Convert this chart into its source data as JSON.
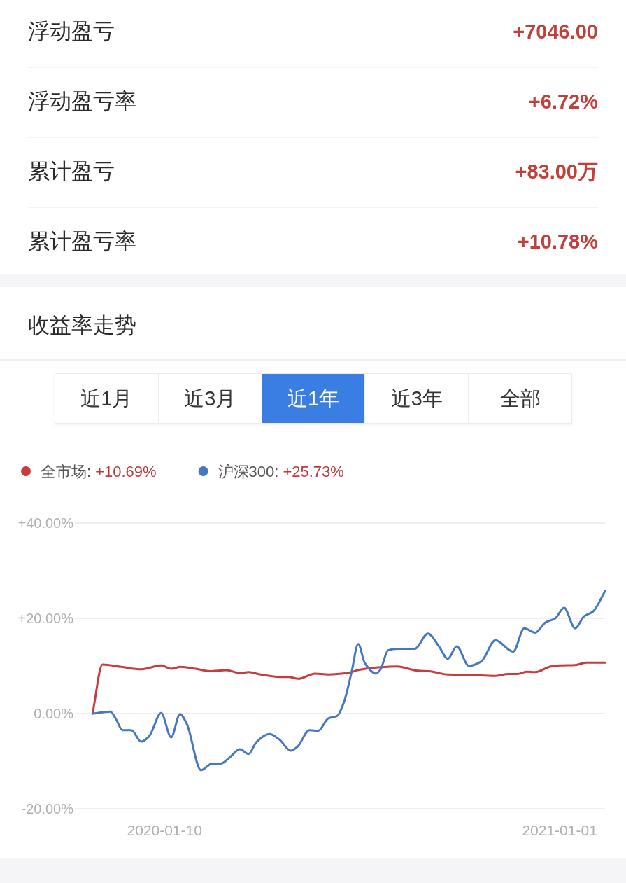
{
  "chart_data": [
    {
      "type": "other",
      "annotations": [
        "浮动盈亏",
        "+7046.00",
        "浮动盈亏率",
        "+6.72%",
        "累计盈亏",
        "+83.00万",
        "累计盈亏率",
        "+10.78%"
      ]
    },
    {
      "type": "line",
      "title": "收益率走势",
      "annotations": [
        "近1月",
        "近3月",
        "近1年",
        "近3年",
        "全部",
        "+10.69%",
        "+25.73%"
      ],
      "legend": "top left",
      "grid": "y",
      "line_style": "solid",
      "xlim": [
        "2019-10-21",
        "2021-02-11"
      ],
      "xticks": [
        "2020-01-10",
        "2021-01-01"
      ],
      "ylim": [
        -20,
        40
      ],
      "yticks": [
        {
          "value": 40,
          "label": "+40.00%"
        },
        {
          "value": 20,
          "label": "+20.00%"
        },
        {
          "value": 0,
          "label": "0.00%"
        },
        {
          "value": -20,
          "label": "-20.00%"
        }
      ],
      "series": [
        {
          "name": "全市场:",
          "color": "#c83c3c",
          "x": [
            "2019-11-06",
            "2019-11-15",
            "2019-12-02",
            "2019-12-20",
            "2020-01-07",
            "2020-01-16",
            "2020-01-24",
            "2020-02-07",
            "2020-02-20",
            "2020-03-06",
            "2020-03-18",
            "2020-03-26",
            "2020-04-06",
            "2020-04-23",
            "2020-05-01",
            "2020-05-10",
            "2020-05-25",
            "2020-06-06",
            "2020-06-25",
            "2020-07-04",
            "2020-07-21",
            "2020-08-07",
            "2020-08-26",
            "2020-09-05",
            "2020-09-22",
            "2020-10-13",
            "2020-11-03",
            "2020-11-16",
            "2020-11-24",
            "2020-12-02",
            "2020-12-10",
            "2020-12-24",
            "2021-01-01",
            "2021-01-15",
            "2021-01-25",
            "2021-02-11"
          ],
          "values": [
            0,
            10.3,
            9.8,
            9.3,
            10.1,
            9.4,
            9.8,
            9.4,
            8.9,
            9.1,
            8.5,
            8.7,
            8.2,
            7.7,
            7.7,
            7.3,
            8.4,
            8.2,
            8.6,
            9.2,
            9.7,
            9.9,
            9.0,
            8.9,
            8.2,
            8.1,
            7.9,
            8.3,
            8.3,
            8.8,
            8.7,
            9.9,
            10.1,
            10.2,
            10.7,
            10.7
          ]
        },
        {
          "name": "沪深300:",
          "color": "#4677bf",
          "x": [
            "2019-11-06",
            "2019-11-22",
            "2019-11-27",
            "2019-12-03",
            "2019-12-11",
            "2019-12-20",
            "2019-12-27",
            "2020-01-07",
            "2020-01-16",
            "2020-01-24",
            "2020-01-30",
            "2020-02-12",
            "2020-02-22",
            "2020-03-01",
            "2020-03-09",
            "2020-03-18",
            "2020-03-26",
            "2020-04-02",
            "2020-04-14",
            "2020-04-23",
            "2020-05-03",
            "2020-05-09",
            "2020-05-20",
            "2020-05-28",
            "2020-06-06",
            "2020-06-14",
            "2020-06-20",
            "2020-06-27",
            "2020-07-03",
            "2020-07-09",
            "2020-07-19",
            "2020-07-23",
            "2020-07-30",
            "2020-08-07",
            "2020-08-23",
            "2020-09-04",
            "2020-09-14",
            "2020-09-22",
            "2020-09-30",
            "2020-10-11",
            "2020-10-22",
            "2020-11-04",
            "2020-11-20",
            "2020-11-30",
            "2020-12-10",
            "2020-12-19",
            "2020-12-28",
            "2021-01-05",
            "2021-01-15",
            "2021-01-23",
            "2021-01-31",
            "2021-02-11"
          ],
          "values": [
            0,
            0.4,
            -1.1,
            -3.5,
            -3.5,
            -5.9,
            -4.8,
            0.1,
            -5.0,
            -0.1,
            -2.1,
            -11.9,
            -10.5,
            -10.5,
            -9.2,
            -7.5,
            -8.5,
            -6.0,
            -4.3,
            -5.5,
            -7.8,
            -7.0,
            -3.5,
            -3.6,
            -1.0,
            -0.5,
            2.3,
            8.7,
            14.6,
            10.6,
            8.4,
            9.2,
            13.3,
            13.6,
            13.6,
            16.8,
            14.1,
            11.5,
            14.1,
            10.0,
            10.9,
            15.4,
            13.0,
            17.9,
            17.0,
            19.1,
            20.0,
            22.2,
            17.9,
            20.4,
            21.4,
            25.7
          ]
        }
      ]
    }
  ]
}
